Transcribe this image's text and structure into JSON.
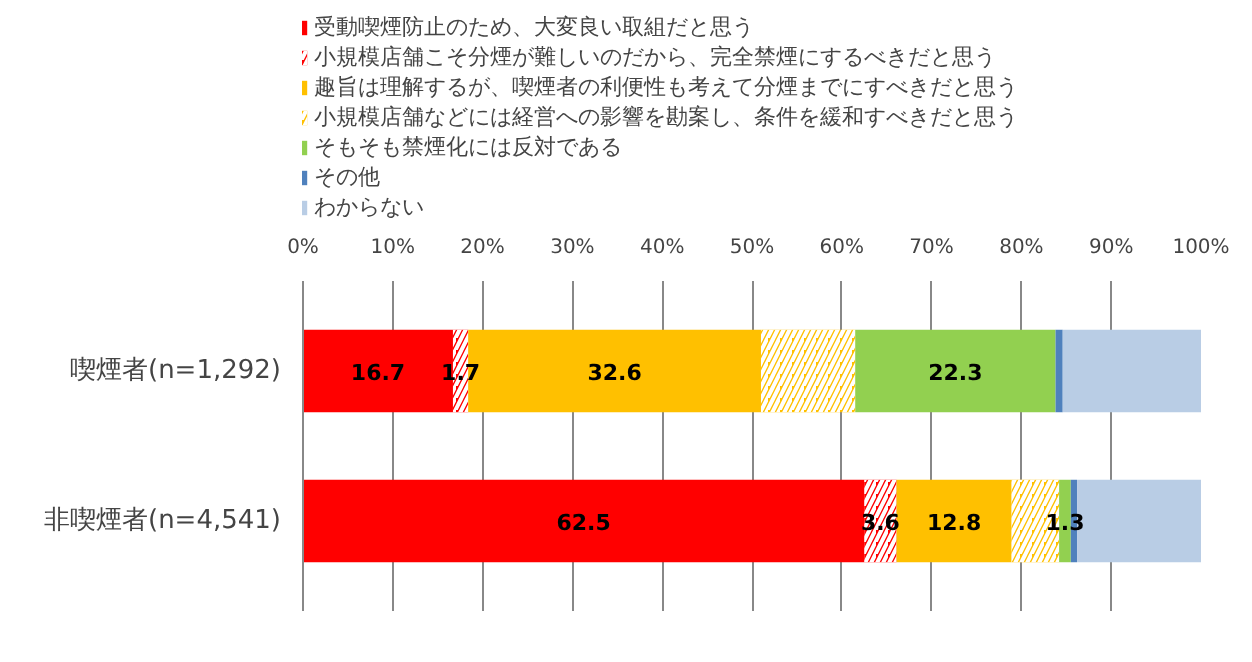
{
  "chart_data": {
    "type": "bar",
    "orientation": "horizontal",
    "stacked": true,
    "categories": [
      "喫煙者(n=1,292)",
      "非喫煙者(n=4,541)"
    ],
    "series": [
      {
        "name": "受動喫煙防止のため、大変良い取組だと思う",
        "color": "#ff0000",
        "values": [
          16.7,
          62.5
        ],
        "value_labels": [
          "16.7",
          "62.5"
        ]
      },
      {
        "name": "小規模店舗こそ分煙が難しいのだから、完全禁煙にするべきだと思う",
        "color": "#ff0000",
        "values": [
          1.7,
          3.6
        ],
        "value_labels": [
          "1.7",
          "3.6"
        ]
      },
      {
        "name": "趣旨は理解するが、喫煙者の利便性も考えて分煙までにすべきだと思う",
        "color": "#ffc000",
        "values": [
          32.6,
          12.8
        ],
        "value_labels": [
          "32.6",
          "12.8"
        ]
      },
      {
        "name": "小規模店舗などには経営への影響を勘案し、条件を緩和すべきだと思う",
        "color": "#ffc000",
        "values": [
          10.5,
          5.3
        ],
        "value_labels": [
          null,
          null
        ]
      },
      {
        "name": "そもそも禁煙化には反対である",
        "color": "#92d050",
        "values": [
          22.3,
          1.3
        ],
        "value_labels": [
          "22.3",
          "1.3"
        ]
      },
      {
        "name": "その他",
        "color": "#4f81bd",
        "values": [
          0.8,
          0.7
        ],
        "value_labels": [
          null,
          null
        ]
      },
      {
        "name": "わからない",
        "color": "#b9cde5",
        "values": [
          15.4,
          13.8
        ],
        "value_labels": [
          null,
          null
        ]
      }
    ],
    "xlim": [
      0,
      100
    ],
    "xticks": [
      {
        "value": 0,
        "label": "0%"
      },
      {
        "value": 10,
        "label": "10%"
      },
      {
        "value": 20,
        "label": "20%"
      },
      {
        "value": 30,
        "label": "30%"
      },
      {
        "value": 40,
        "label": "40%"
      },
      {
        "value": 50,
        "label": "50%"
      },
      {
        "value": 60,
        "label": "60%"
      },
      {
        "value": 70,
        "label": "70%"
      },
      {
        "value": 80,
        "label": "80%"
      },
      {
        "value": 90,
        "label": "90%"
      },
      {
        "value": 100,
        "label": "100%"
      }
    ],
    "grid": "x",
    "legend": "top"
  }
}
